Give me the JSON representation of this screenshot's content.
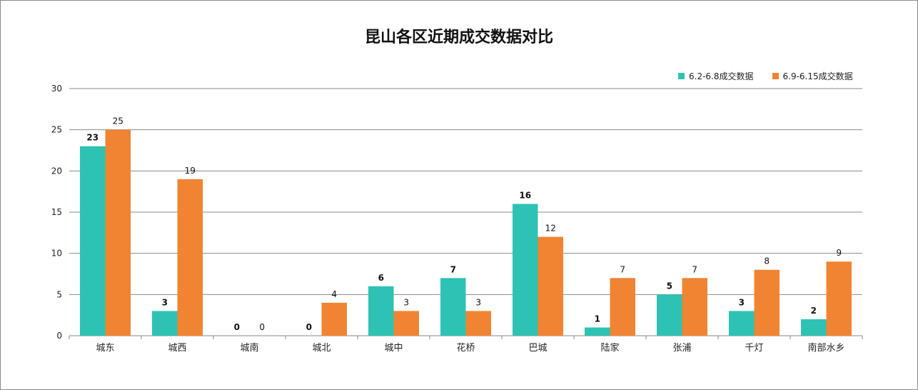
{
  "chart_data": {
    "type": "bar",
    "title": "昆山各区近期成交数据对比",
    "xlabel": "",
    "ylabel": "",
    "ylim": [
      0,
      30
    ],
    "yticks": [
      0,
      5,
      10,
      15,
      20,
      25,
      30
    ],
    "grid": true,
    "legend_position": "top-right",
    "categories": [
      "城东",
      "城西",
      "城南",
      "城北",
      "城中",
      "花桥",
      "巴城",
      "陆家",
      "张浦",
      "千灯",
      "南部水乡"
    ],
    "series": [
      {
        "name": "6.2-6.8成交数据",
        "color": "#2ec2b4",
        "bold_labels": true,
        "values": [
          23,
          3,
          0,
          0,
          6,
          7,
          16,
          1,
          5,
          3,
          2
        ]
      },
      {
        "name": "6.9-6.15成交数据",
        "color": "#f08432",
        "bold_labels": false,
        "values": [
          25,
          19,
          0,
          4,
          3,
          3,
          12,
          7,
          7,
          8,
          9
        ]
      }
    ]
  }
}
